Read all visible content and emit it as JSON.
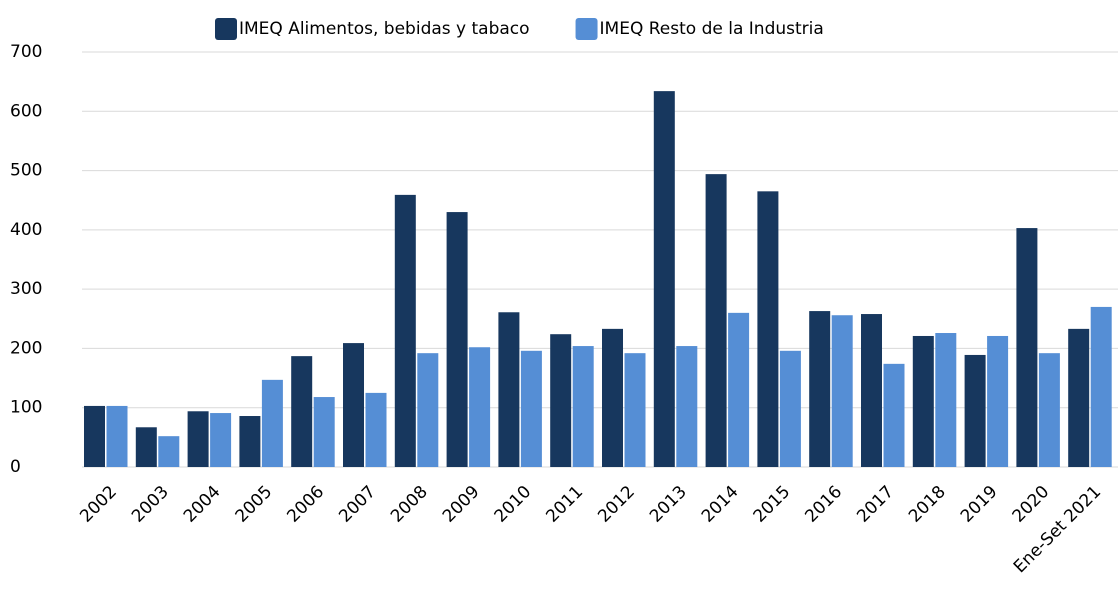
{
  "chart_data": {
    "type": "bar",
    "categories": [
      "2002",
      "2003",
      "2004",
      "2005",
      "2006",
      "2007",
      "2008",
      "2009",
      "2010",
      "2011",
      "2012",
      "2013",
      "2014",
      "2015",
      "2016",
      "2017",
      "2018",
      "2019",
      "2020",
      "Ene-Set 2021"
    ],
    "series": [
      {
        "name": "IMEQ Alimentos, bebidas y tabaco",
        "color": "#17375e",
        "values": [
          103,
          67,
          94,
          86,
          187,
          209,
          459,
          430,
          261,
          224,
          233,
          634,
          494,
          465,
          263,
          258,
          221,
          189,
          403,
          233
        ]
      },
      {
        "name": "IMEQ Resto de la Industria",
        "color": "#558ed5",
        "values": [
          103,
          52,
          91,
          147,
          118,
          125,
          192,
          202,
          196,
          204,
          192,
          204,
          260,
          196,
          256,
          174,
          226,
          221,
          192,
          270
        ]
      }
    ],
    "ylim": [
      0,
      700
    ],
    "yticks": [
      0,
      100,
      200,
      300,
      400,
      500,
      600,
      700
    ],
    "grid": true,
    "legend": "top"
  }
}
